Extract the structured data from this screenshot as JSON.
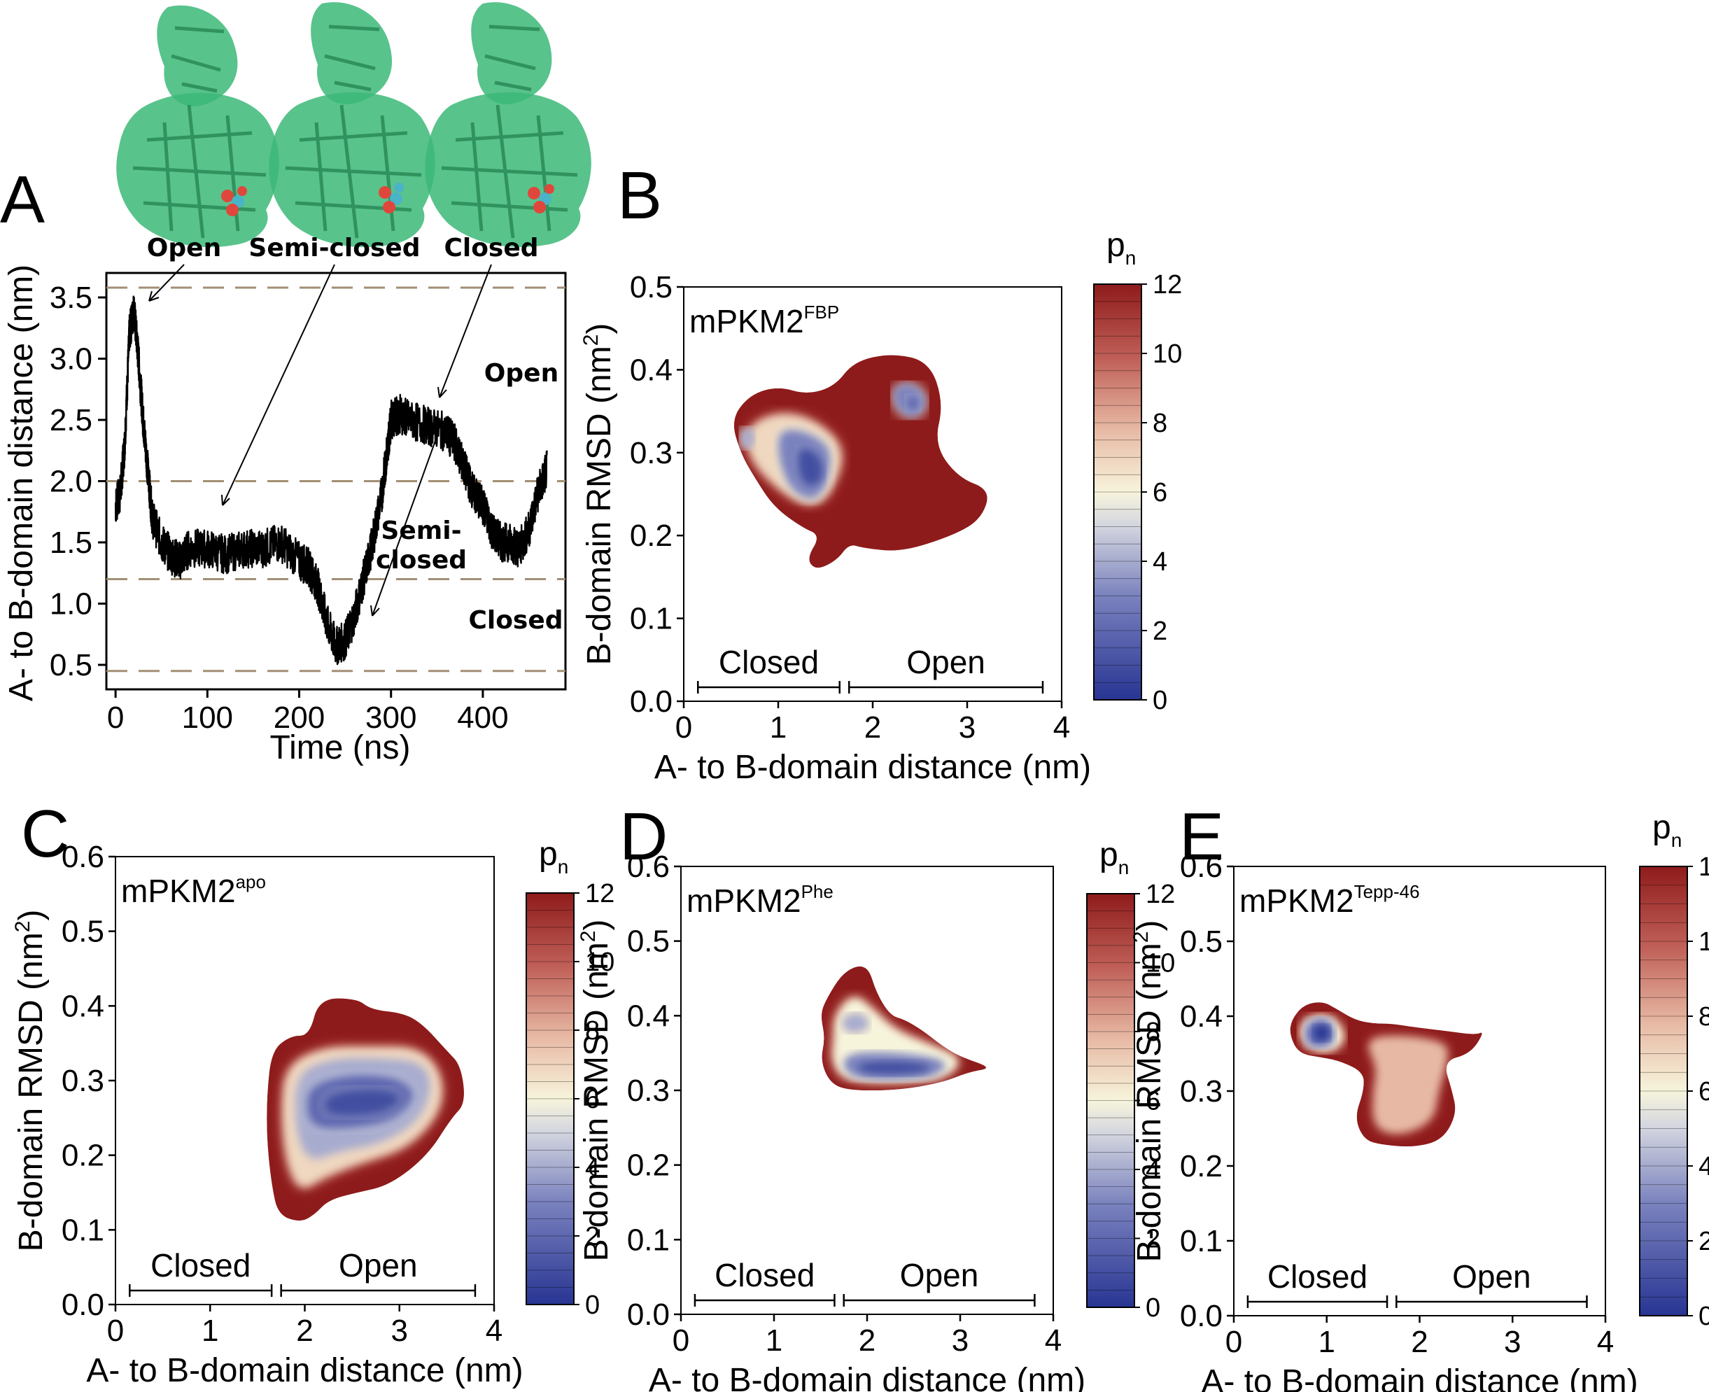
{
  "panelA": {
    "letter": "A",
    "state_labels": [
      "Open",
      "Semi-closed",
      "Closed"
    ],
    "ylabel": "A- to B-domain distance (nm)",
    "xlabel": "Time (ns)",
    "xticks": [
      "0",
      "100",
      "200",
      "300",
      "400"
    ],
    "yticks": [
      "0.5",
      "1.0",
      "1.5",
      "2.0",
      "2.5",
      "3.0",
      "3.5"
    ],
    "region_notes": {
      "open": "Open",
      "semi_line1": "Semi-",
      "semi_line2": "closed",
      "closed": "Closed"
    }
  },
  "heatmap_text": {
    "xlabel": "A- to B-domain distance (nm)",
    "ylabel_main": "B-domain RMSD (nm",
    "ylabel_sup": "2",
    "ylabel_end": ")",
    "closed_label": "Closed",
    "open_label": "Open",
    "colorbar_title": "p",
    "colorbar_sub": "n",
    "colorbar_ticks": [
      "12",
      "10",
      "8",
      "6",
      "4",
      "2",
      "0"
    ],
    "xticks": [
      "0",
      "1",
      "2",
      "3",
      "4"
    ]
  },
  "panels": {
    "B": {
      "letter": "B",
      "system": "mPKM2",
      "sup": "FBP",
      "yticks": [
        "0.0",
        "0.1",
        "0.2",
        "0.3",
        "0.4",
        "0.5"
      ]
    },
    "C": {
      "letter": "C",
      "system": "mPKM2",
      "sup": "apo",
      "yticks": [
        "0.0",
        "0.1",
        "0.2",
        "0.3",
        "0.4",
        "0.5",
        "0.6"
      ]
    },
    "D": {
      "letter": "D",
      "system": "mPKM2",
      "sup": "Phe",
      "yticks": [
        "0.0",
        "0.1",
        "0.2",
        "0.3",
        "0.4",
        "0.5",
        "0.6"
      ]
    },
    "E": {
      "letter": "E",
      "system": "mPKM2",
      "sup": "Tepp-46",
      "yticks": [
        "0.0",
        "0.1",
        "0.2",
        "0.3",
        "0.4",
        "0.5",
        "0.6"
      ]
    }
  },
  "colors": {
    "protein": "#3cb878",
    "ligand_red": "#e0473c",
    "ligand_cyan": "#49b3c8",
    "dashed_line": "#a28f74",
    "trace": "#000000",
    "cmap_low": "#283593",
    "cmap_mid": "#f7f4dc",
    "cmap_high": "#8e1b1b"
  },
  "chart_data": [
    {
      "panel": "A",
      "type": "line",
      "xlabel": "Time (ns)",
      "ylabel": "A- to B-domain distance (nm)",
      "xlim": [
        -10,
        490
      ],
      "ylim": [
        0.3,
        3.7
      ],
      "reference_lines": [
        3.58,
        2.0,
        1.2,
        0.45
      ],
      "series": [
        {
          "x": [
            0,
            5,
            10,
            15,
            20,
            25,
            30,
            35,
            40,
            50,
            60,
            70,
            80,
            100,
            120,
            140,
            160,
            180,
            200,
            210,
            220,
            230,
            240,
            250,
            260,
            270,
            280,
            290,
            295,
            300,
            310,
            320,
            340,
            360,
            370,
            380,
            390,
            400,
            410,
            420,
            430,
            440,
            450,
            460,
            470
          ],
          "values": [
            1.8,
            1.9,
            2.3,
            3.2,
            3.4,
            3.0,
            2.5,
            2.1,
            1.7,
            1.5,
            1.4,
            1.35,
            1.45,
            1.45,
            1.4,
            1.45,
            1.45,
            1.5,
            1.35,
            1.3,
            1.15,
            0.85,
            0.65,
            0.7,
            0.9,
            1.2,
            1.5,
            1.9,
            2.2,
            2.5,
            2.55,
            2.5,
            2.45,
            2.4,
            2.3,
            2.1,
            1.9,
            1.8,
            1.6,
            1.5,
            1.5,
            1.45,
            1.6,
            1.9,
            2.1
          ]
        }
      ]
    },
    {
      "panel": "B",
      "type": "heatmap",
      "title": "mPKM2FBP",
      "xlabel": "A- to B-domain distance (nm)",
      "ylabel": "B-domain RMSD (nm2)",
      "xlim": [
        0,
        4
      ],
      "ylim": [
        0,
        0.5
      ],
      "colorbar_range": [
        0,
        12
      ],
      "boundary": [
        [
          0.5,
          0.34
        ],
        [
          0.7,
          0.37
        ],
        [
          1.0,
          0.38
        ],
        [
          1.3,
          0.37
        ],
        [
          1.6,
          0.38
        ],
        [
          1.8,
          0.41
        ],
        [
          2.2,
          0.42
        ],
        [
          2.6,
          0.41
        ],
        [
          2.75,
          0.36
        ],
        [
          2.65,
          0.31
        ],
        [
          2.9,
          0.27
        ],
        [
          3.25,
          0.255
        ],
        [
          3.15,
          0.22
        ],
        [
          2.85,
          0.2
        ],
        [
          2.3,
          0.18
        ],
        [
          1.9,
          0.185
        ],
        [
          1.75,
          0.19
        ],
        [
          1.62,
          0.17
        ],
        [
          1.4,
          0.158
        ],
        [
          1.3,
          0.172
        ],
        [
          1.45,
          0.2
        ],
        [
          1.25,
          0.21
        ],
        [
          0.95,
          0.235
        ],
        [
          0.75,
          0.27
        ],
        [
          0.6,
          0.3
        ]
      ],
      "layers": [
        {
          "level": 7,
          "points": [
            [
              0.65,
              0.33
            ],
            [
              1.0,
              0.35
            ],
            [
              1.4,
              0.34
            ],
            [
              1.75,
              0.3
            ],
            [
              1.45,
              0.23
            ],
            [
              1.05,
              0.25
            ],
            [
              0.7,
              0.29
            ]
          ]
        },
        {
          "level": 3,
          "points": [
            [
              1.0,
              0.33
            ],
            [
              1.35,
              0.325
            ],
            [
              1.6,
              0.3
            ],
            [
              1.45,
              0.24
            ],
            [
              1.15,
              0.25
            ],
            [
              1.0,
              0.29
            ]
          ]
        },
        {
          "level": 1,
          "points": [
            [
              1.2,
              0.31
            ],
            [
              1.45,
              0.3
            ],
            [
              1.5,
              0.27
            ],
            [
              1.35,
              0.255
            ],
            [
              1.2,
              0.27
            ]
          ]
        },
        {
          "level": 3,
          "points": [
            [
              2.2,
              0.38
            ],
            [
              2.45,
              0.385
            ],
            [
              2.6,
              0.36
            ],
            [
              2.45,
              0.34
            ],
            [
              2.25,
              0.35
            ]
          ]
        },
        {
          "level": 2,
          "points": [
            [
              2.35,
              0.37
            ],
            [
              2.5,
              0.37
            ],
            [
              2.5,
              0.35
            ],
            [
              2.35,
              0.35
            ]
          ]
        },
        {
          "level": 4,
          "points": [
            [
              0.6,
              0.33
            ],
            [
              0.75,
              0.33
            ],
            [
              0.75,
              0.305
            ],
            [
              0.6,
              0.305
            ]
          ]
        }
      ]
    },
    {
      "panel": "C",
      "type": "heatmap",
      "title": "mPKM2apo",
      "xlabel": "A- to B-domain distance (nm)",
      "ylabel": "B-domain RMSD (nm2)",
      "xlim": [
        0,
        4
      ],
      "ylim": [
        0,
        0.6
      ],
      "colorbar_range": [
        0,
        12
      ],
      "boundary": [
        [
          1.65,
          0.34
        ],
        [
          1.85,
          0.36
        ],
        [
          2.05,
          0.36
        ],
        [
          2.15,
          0.41
        ],
        [
          2.55,
          0.41
        ],
        [
          2.7,
          0.395
        ],
        [
          3.05,
          0.39
        ],
        [
          3.25,
          0.375
        ],
        [
          3.5,
          0.34
        ],
        [
          3.65,
          0.32
        ],
        [
          3.7,
          0.27
        ],
        [
          3.55,
          0.25
        ],
        [
          3.3,
          0.2
        ],
        [
          2.9,
          0.16
        ],
        [
          2.55,
          0.15
        ],
        [
          2.25,
          0.14
        ],
        [
          2.1,
          0.12
        ],
        [
          1.95,
          0.11
        ],
        [
          1.72,
          0.12
        ],
        [
          1.65,
          0.16
        ],
        [
          1.6,
          0.22
        ],
        [
          1.6,
          0.28
        ]
      ],
      "layers": [
        {
          "level": 7,
          "points": [
            [
              1.8,
              0.32
            ],
            [
              2.2,
              0.345
            ],
            [
              2.7,
              0.345
            ],
            [
              3.2,
              0.345
            ],
            [
              3.45,
              0.31
            ],
            [
              3.45,
              0.26
            ],
            [
              3.1,
              0.21
            ],
            [
              2.6,
              0.19
            ],
            [
              2.2,
              0.17
            ],
            [
              1.95,
              0.15
            ],
            [
              1.8,
              0.19
            ],
            [
              1.75,
              0.26
            ]
          ]
        },
        {
          "level": 4,
          "points": [
            [
              1.9,
              0.31
            ],
            [
              2.3,
              0.33
            ],
            [
              2.8,
              0.33
            ],
            [
              3.25,
              0.325
            ],
            [
              3.35,
              0.29
            ],
            [
              3.2,
              0.245
            ],
            [
              2.8,
              0.215
            ],
            [
              2.35,
              0.205
            ],
            [
              2.05,
              0.19
            ],
            [
              1.9,
              0.23
            ]
          ]
        },
        {
          "level": 2,
          "points": [
            [
              2.05,
              0.295
            ],
            [
              2.5,
              0.31
            ],
            [
              3.0,
              0.305
            ],
            [
              3.2,
              0.28
            ],
            [
              2.95,
              0.245
            ],
            [
              2.5,
              0.235
            ],
            [
              2.1,
              0.235
            ],
            [
              2.0,
              0.26
            ]
          ]
        },
        {
          "level": 1,
          "points": [
            [
              2.2,
              0.28
            ],
            [
              2.5,
              0.29
            ],
            [
              2.9,
              0.29
            ],
            [
              3.05,
              0.275
            ],
            [
              2.85,
              0.255
            ],
            [
              2.45,
              0.25
            ],
            [
              2.2,
              0.255
            ]
          ]
        }
      ]
    },
    {
      "panel": "D",
      "type": "heatmap",
      "title": "mPKM2Phe",
      "xlabel": "A- to B-domain distance (nm)",
      "ylabel": "B-domain RMSD (nm2)",
      "xlim": [
        0,
        4
      ],
      "ylim": [
        0,
        0.6
      ],
      "colorbar_range": [
        0,
        12
      ],
      "boundary": [
        [
          1.55,
          0.42
        ],
        [
          1.75,
          0.46
        ],
        [
          2.0,
          0.47
        ],
        [
          2.1,
          0.43
        ],
        [
          2.25,
          0.4
        ],
        [
          2.4,
          0.395
        ],
        [
          2.6,
          0.38
        ],
        [
          2.8,
          0.36
        ],
        [
          3.0,
          0.345
        ],
        [
          3.35,
          0.33
        ],
        [
          3.1,
          0.325
        ],
        [
          2.8,
          0.31
        ],
        [
          2.3,
          0.3
        ],
        [
          1.8,
          0.3
        ],
        [
          1.6,
          0.31
        ],
        [
          1.5,
          0.34
        ],
        [
          1.55,
          0.37
        ],
        [
          1.5,
          0.4
        ]
      ],
      "layers": [
        {
          "level": 6,
          "points": [
            [
              1.65,
              0.4
            ],
            [
              1.85,
              0.43
            ],
            [
              2.05,
              0.41
            ],
            [
              2.3,
              0.38
            ],
            [
              2.7,
              0.36
            ],
            [
              3.05,
              0.34
            ],
            [
              2.8,
              0.315
            ],
            [
              2.2,
              0.31
            ],
            [
              1.75,
              0.315
            ],
            [
              1.62,
              0.34
            ],
            [
              1.65,
              0.37
            ]
          ]
        },
        {
          "level": 3,
          "points": [
            [
              1.75,
              0.35
            ],
            [
              2.3,
              0.352
            ],
            [
              2.9,
              0.34
            ],
            [
              2.75,
              0.318
            ],
            [
              2.1,
              0.312
            ],
            [
              1.75,
              0.322
            ]
          ]
        },
        {
          "level": 1,
          "points": [
            [
              1.85,
              0.338
            ],
            [
              2.4,
              0.342
            ],
            [
              2.75,
              0.332
            ],
            [
              2.55,
              0.32
            ],
            [
              1.95,
              0.32
            ]
          ]
        },
        {
          "level": 4,
          "points": [
            [
              1.75,
              0.4
            ],
            [
              1.95,
              0.405
            ],
            [
              2.05,
              0.385
            ],
            [
              1.85,
              0.375
            ],
            [
              1.72,
              0.385
            ]
          ]
        }
      ]
    },
    {
      "panel": "E",
      "type": "heatmap",
      "title": "mPKM2Tepp-46",
      "xlabel": "A- to B-domain distance (nm)",
      "ylabel": "B-domain RMSD (nm2)",
      "xlim": [
        0,
        4
      ],
      "ylim": [
        0,
        0.6
      ],
      "colorbar_range": [
        0,
        12
      ],
      "boundary": [
        [
          0.62,
          0.395
        ],
        [
          0.75,
          0.415
        ],
        [
          0.95,
          0.42
        ],
        [
          1.1,
          0.41
        ],
        [
          1.3,
          0.395
        ],
        [
          1.5,
          0.39
        ],
        [
          1.7,
          0.39
        ],
        [
          1.95,
          0.385
        ],
        [
          2.3,
          0.38
        ],
        [
          2.6,
          0.375
        ],
        [
          2.7,
          0.38
        ],
        [
          2.55,
          0.35
        ],
        [
          2.25,
          0.34
        ],
        [
          2.35,
          0.3
        ],
        [
          2.4,
          0.27
        ],
        [
          2.25,
          0.235
        ],
        [
          1.95,
          0.225
        ],
        [
          1.6,
          0.228
        ],
        [
          1.4,
          0.235
        ],
        [
          1.3,
          0.265
        ],
        [
          1.4,
          0.3
        ],
        [
          1.4,
          0.325
        ],
        [
          1.15,
          0.34
        ],
        [
          0.95,
          0.345
        ],
        [
          0.7,
          0.35
        ],
        [
          0.6,
          0.375
        ]
      ],
      "layers": [
        {
          "level": 8,
          "points": [
            [
              1.4,
              0.37
            ],
            [
              1.8,
              0.375
            ],
            [
              2.3,
              0.365
            ],
            [
              2.3,
              0.34
            ],
            [
              2.2,
              0.3
            ],
            [
              2.15,
              0.26
            ],
            [
              1.8,
              0.24
            ],
            [
              1.5,
              0.25
            ],
            [
              1.5,
              0.3
            ],
            [
              1.55,
              0.33
            ]
          ]
        },
        {
          "level": 6,
          "points": [
            [
              0.7,
              0.39
            ],
            [
              0.95,
              0.405
            ],
            [
              1.15,
              0.39
            ],
            [
              1.2,
              0.365
            ],
            [
              1.0,
              0.35
            ],
            [
              0.75,
              0.36
            ]
          ]
        },
        {
          "level": 2,
          "points": [
            [
              0.78,
              0.39
            ],
            [
              0.98,
              0.4
            ],
            [
              1.1,
              0.38
            ],
            [
              1.05,
              0.36
            ],
            [
              0.85,
              0.358
            ],
            [
              0.76,
              0.37
            ]
          ]
        },
        {
          "level": 0,
          "points": [
            [
              0.85,
              0.385
            ],
            [
              1.0,
              0.39
            ],
            [
              1.05,
              0.375
            ],
            [
              0.95,
              0.365
            ],
            [
              0.86,
              0.37
            ]
          ]
        }
      ]
    }
  ]
}
